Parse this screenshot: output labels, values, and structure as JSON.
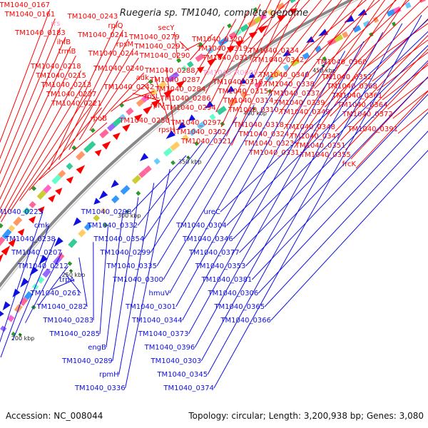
{
  "title": "Ruegeria sp. TM1040, complete genome",
  "footer": {
    "accession": "Accession: NC_008044",
    "topology": "Topology: circular; Length: 3,200,938 bp; Genes: 3,080"
  },
  "colors": {
    "forward": "#ff0000",
    "reverse": "#1010e0",
    "rna": "#ff99cc",
    "backbone": "#888888",
    "other_tracks": "#2e9a2e"
  },
  "scale_ticks": [
    {
      "label": "200 kbp",
      "kbp": 200
    },
    {
      "label": "250 kbp",
      "kbp": 250
    },
    {
      "label": "300 kbp",
      "kbp": 300
    },
    {
      "label": "350 kbp",
      "kbp": 350
    },
    {
      "label": "400 kbp",
      "kbp": 400
    },
    {
      "label": "450 kbp",
      "kbp": 450
    }
  ],
  "forward_labels": [
    "TM1040_0167",
    "TM1040_0161",
    "rrs",
    "TM1040_0183",
    "ihfB",
    "trmB",
    "TM1040_0218",
    "TM1040_0215",
    "TM1040_0213",
    "TM1040_0227",
    "TM1040_0221",
    "rpoB",
    "TM1040_0243",
    "rplQ",
    "TM1040_0241",
    "rpsM",
    "TM1040_0244",
    "TM1040_0240",
    "adk",
    "TM1040_0242",
    "rpsL",
    "rplV",
    "TM1040_0250",
    "rpsH",
    "secY",
    "TM1040_0279",
    "TM1040_0291",
    "TM1040_0290",
    "TM1040_0288",
    "TM1040_0287",
    "TM1040_0284",
    "TM1040_0286",
    "TM1040_0294",
    "TM1040_0297",
    "TM1040_0302",
    "TM1040_0321",
    "TM1040_0320",
    "TM1040_0319",
    "TM1040_0317",
    "TM1040_R0009",
    "TM1040_0316",
    "TM1040_0315",
    "TM1040_0314",
    "TM1040_0310",
    "TM1040_0318",
    "TM1040_0324",
    "TM1040_0323",
    "TM1040_0331",
    "TM1040_0334",
    "TM1040_0342",
    "TM1040_0340",
    "TM1040_0338",
    "TM1040_0337",
    "TM1040_0339",
    "TM1040_0349",
    "TM1040_0348",
    "TM1040_0347",
    "TM1040_0351",
    "TM1040_0355",
    "frcK",
    "TM1040_0360",
    "TM1040_0352",
    "TM1040_0368",
    "TM1040_0361",
    "TM1040_0364",
    "TM1040_0372",
    "TM1040_0391"
  ],
  "reverse_labels": [
    "TM1040_0223",
    "cmk",
    "TM1040_0238",
    "TM1040_0207",
    "TM1040_0212",
    "trpA",
    "TM1040_0261",
    "TM1040_0282",
    "TM1040_0283",
    "TM1040_0285",
    "engB",
    "TM1040_0289",
    "rpmH",
    "TM1040_0336",
    "TM1040_0298",
    "TM1040_0332",
    "TM1040_0354",
    "TM1040_0299",
    "TM1040_0335",
    "TM1040_0300",
    "hmuV",
    "TM1040_0301",
    "TM1040_0344",
    "TM1040_0373",
    "TM1040_0396",
    "TM1040_0303",
    "TM1040_0345",
    "TM1040_0374",
    "ureC",
    "TM1040_0304",
    "TM1040_0346",
    "TM1040_0377",
    "TM1040_0353",
    "TM1040_0381",
    "TM1040_0306",
    "TM1040_0365",
    "TM1040_0366"
  ]
}
